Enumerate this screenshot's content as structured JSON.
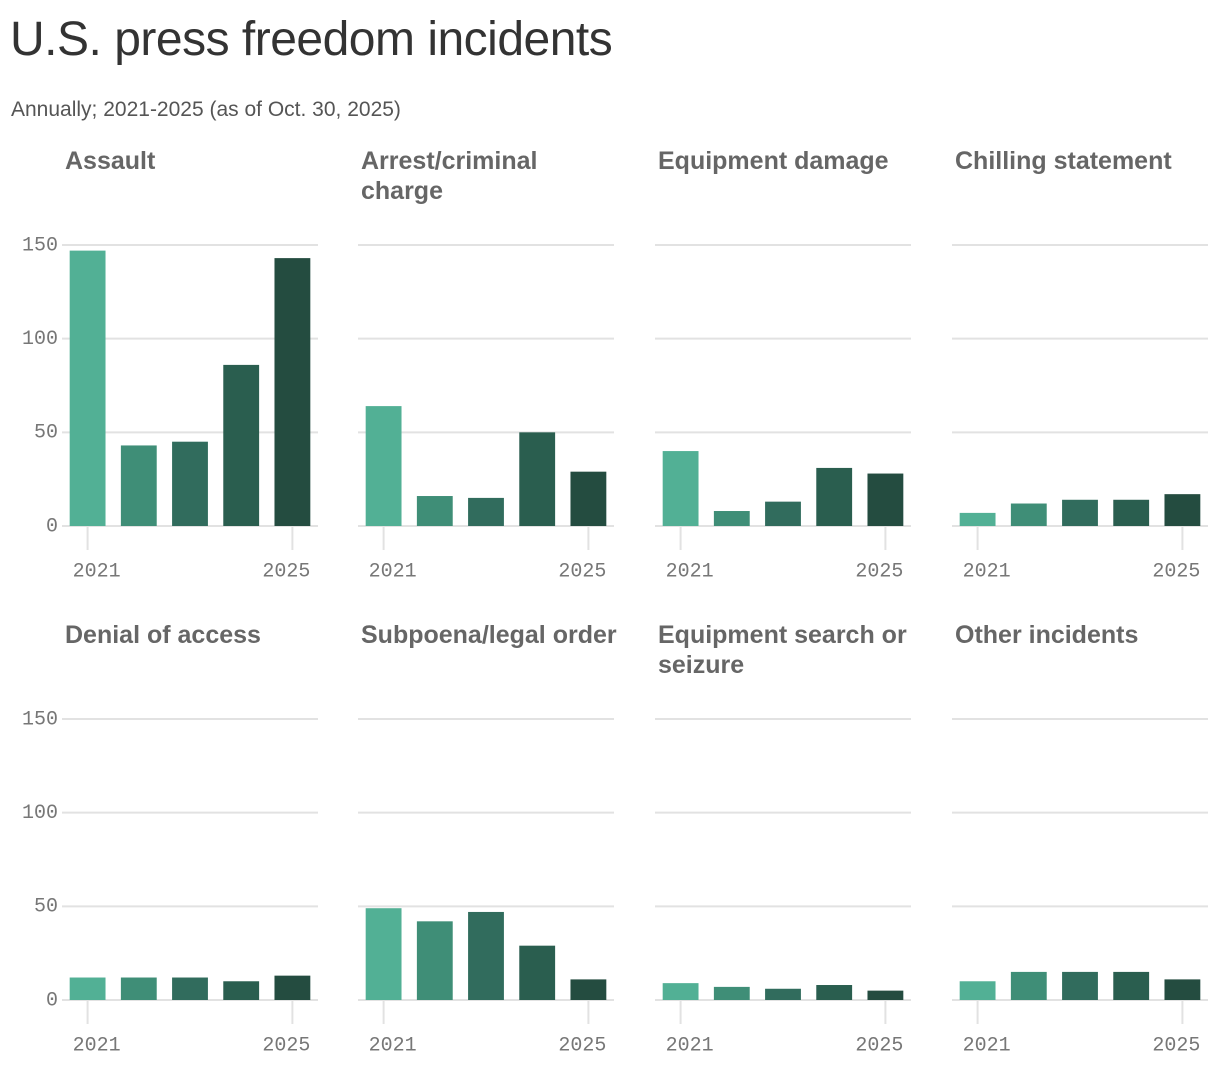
{
  "title": "U.S. press freedom incidents",
  "subtitle": "Annually; 2021-2025 (as of Oct. 30, 2025)",
  "chart_data": [
    {
      "type": "bar",
      "title": "Assault",
      "x": [
        2021,
        2022,
        2023,
        2024,
        2025
      ],
      "values": [
        147,
        43,
        45,
        86,
        143
      ],
      "colors": [
        "#52b095",
        "#3f8e77",
        "#316c5d",
        "#2a5e4f",
        "#244c40"
      ],
      "xlim": [
        2020.5,
        2025.5
      ],
      "xticks": [
        2021,
        2025
      ],
      "ylim": [
        0,
        150
      ],
      "yticks": [
        0,
        50,
        100,
        150
      ],
      "show_ytick_labels": true,
      "grid": true
    },
    {
      "type": "bar",
      "title": "Arrest/criminal charge",
      "x": [
        2021,
        2022,
        2023,
        2024,
        2025
      ],
      "values": [
        64,
        16,
        15,
        50,
        29
      ],
      "colors": [
        "#52b095",
        "#3f8e77",
        "#316c5d",
        "#2a5e4f",
        "#244c40"
      ],
      "xlim": [
        2020.5,
        2025.5
      ],
      "xticks": [
        2021,
        2025
      ],
      "ylim": [
        0,
        150
      ],
      "yticks": [
        0,
        50,
        100,
        150
      ],
      "show_ytick_labels": false,
      "grid": true
    },
    {
      "type": "bar",
      "title": "Equipment damage",
      "x": [
        2021,
        2022,
        2023,
        2024,
        2025
      ],
      "values": [
        40,
        8,
        13,
        31,
        28
      ],
      "colors": [
        "#52b095",
        "#3f8e77",
        "#316c5d",
        "#2a5e4f",
        "#244c40"
      ],
      "xlim": [
        2020.5,
        2025.5
      ],
      "xticks": [
        2021,
        2025
      ],
      "ylim": [
        0,
        150
      ],
      "yticks": [
        0,
        50,
        100,
        150
      ],
      "show_ytick_labels": false,
      "grid": true
    },
    {
      "type": "bar",
      "title": "Chilling statement",
      "x": [
        2021,
        2022,
        2023,
        2024,
        2025
      ],
      "values": [
        7,
        12,
        14,
        14,
        17
      ],
      "colors": [
        "#52b095",
        "#3f8e77",
        "#316c5d",
        "#2a5e4f",
        "#244c40"
      ],
      "xlim": [
        2020.5,
        2025.5
      ],
      "xticks": [
        2021,
        2025
      ],
      "ylim": [
        0,
        150
      ],
      "yticks": [
        0,
        50,
        100,
        150
      ],
      "show_ytick_labels": false,
      "grid": true
    },
    {
      "type": "bar",
      "title": "Denial of access",
      "x": [
        2021,
        2022,
        2023,
        2024,
        2025
      ],
      "values": [
        12,
        12,
        12,
        10,
        13
      ],
      "colors": [
        "#52b095",
        "#3f8e77",
        "#316c5d",
        "#2a5e4f",
        "#244c40"
      ],
      "xlim": [
        2020.5,
        2025.5
      ],
      "xticks": [
        2021,
        2025
      ],
      "ylim": [
        0,
        150
      ],
      "yticks": [
        0,
        50,
        100,
        150
      ],
      "show_ytick_labels": true,
      "grid": true
    },
    {
      "type": "bar",
      "title": "Subpoena/legal order",
      "x": [
        2021,
        2022,
        2023,
        2024,
        2025
      ],
      "values": [
        49,
        42,
        47,
        29,
        11
      ],
      "colors": [
        "#52b095",
        "#3f8e77",
        "#316c5d",
        "#2a5e4f",
        "#244c40"
      ],
      "xlim": [
        2020.5,
        2025.5
      ],
      "xticks": [
        2021,
        2025
      ],
      "ylim": [
        0,
        150
      ],
      "yticks": [
        0,
        50,
        100,
        150
      ],
      "show_ytick_labels": false,
      "grid": true
    },
    {
      "type": "bar",
      "title": "Equipment search or seizure",
      "x": [
        2021,
        2022,
        2023,
        2024,
        2025
      ],
      "values": [
        9,
        7,
        6,
        8,
        5
      ],
      "colors": [
        "#52b095",
        "#3f8e77",
        "#316c5d",
        "#2a5e4f",
        "#244c40"
      ],
      "xlim": [
        2020.5,
        2025.5
      ],
      "xticks": [
        2021,
        2025
      ],
      "ylim": [
        0,
        150
      ],
      "yticks": [
        0,
        50,
        100,
        150
      ],
      "show_ytick_labels": false,
      "grid": true
    },
    {
      "type": "bar",
      "title": "Other incidents",
      "x": [
        2021,
        2022,
        2023,
        2024,
        2025
      ],
      "values": [
        10,
        15,
        15,
        15,
        11
      ],
      "colors": [
        "#52b095",
        "#3f8e77",
        "#316c5d",
        "#2a5e4f",
        "#244c40"
      ],
      "xlim": [
        2020.5,
        2025.5
      ],
      "xticks": [
        2021,
        2025
      ],
      "ylim": [
        0,
        150
      ],
      "yticks": [
        0,
        50,
        100,
        150
      ],
      "show_ytick_labels": false,
      "grid": true
    }
  ]
}
